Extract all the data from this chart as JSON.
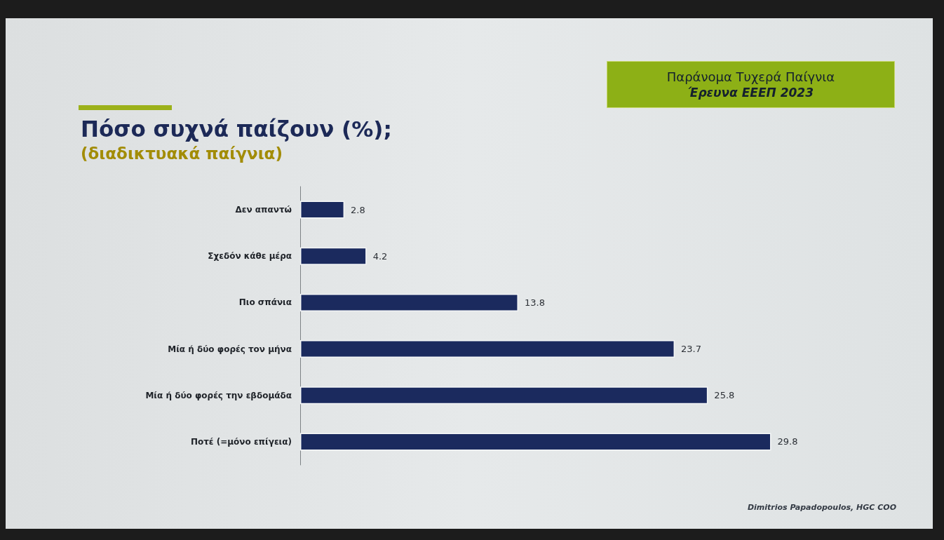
{
  "chart_data": {
    "type": "bar",
    "orientation": "horizontal",
    "title": "Πόσο συχνά παίζουν (%);",
    "subtitle": "(διαδικτυακά παίγνια)",
    "categories": [
      "Δεν απαντώ",
      "Σχεδόν κάθε μέρα",
      "Πιο σπάνια",
      "Μία ή δύο φορές τον μήνα",
      "Μία ή δύο φορές την εβδομάδα",
      "Ποτέ (=μόνο επίγεια)"
    ],
    "values": [
      2.8,
      4.2,
      13.8,
      23.7,
      25.8,
      29.8
    ],
    "color": "#1b2a5e",
    "data_labels": true,
    "annotations": [
      "Παράνομα Τυχερά Παίγνια",
      "Έρευνα ΕΕΕΠ 2023",
      "Dimitrios Papadopoulos, HGC COO"
    ]
  }
}
